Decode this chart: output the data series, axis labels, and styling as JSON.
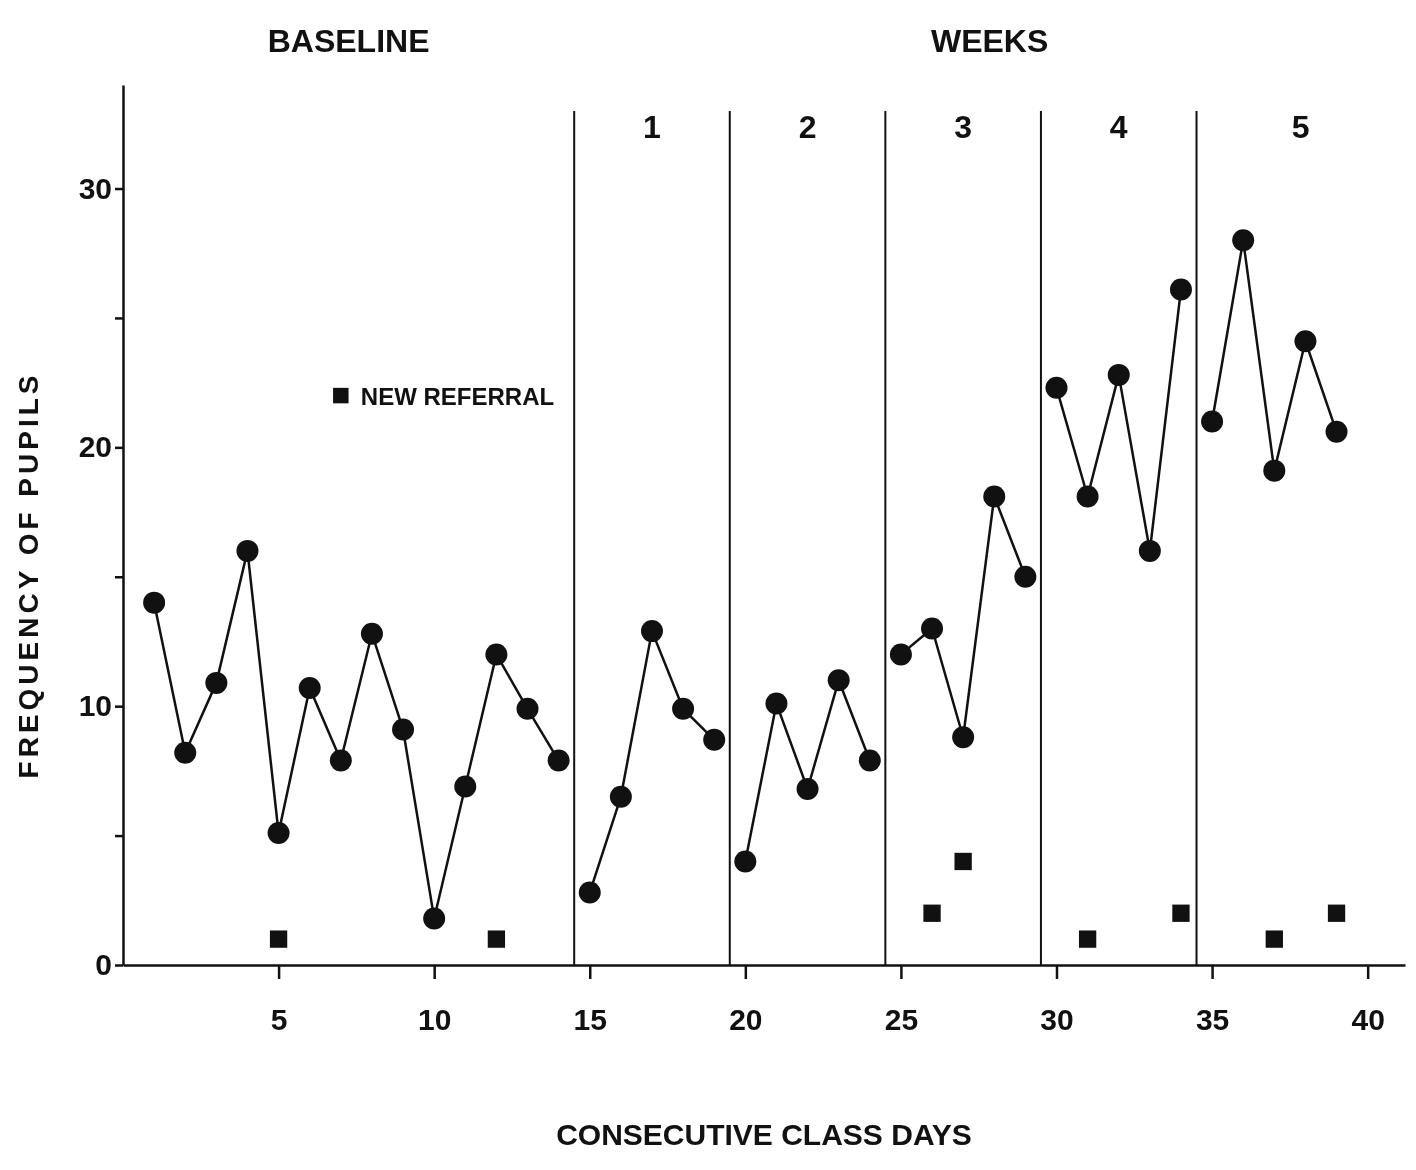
{
  "chart_data": {
    "type": "line",
    "xlabel": "CONSECUTIVE CLASS DAYS",
    "ylabel": "FREQUENCY OF PUPILS",
    "annotations": [
      "BASELINE",
      "WEEKS",
      "1",
      "2",
      "3",
      "4",
      "5"
    ],
    "xlim": [
      0,
      41.2
    ],
    "ylim": [
      0,
      34
    ],
    "xticks": [
      5,
      10,
      15,
      20,
      25,
      30,
      35,
      40
    ],
    "yticks": [
      0,
      {
        "value": 5,
        "label": null
      },
      10,
      {
        "value": 15,
        "label": null
      },
      20,
      {
        "value": 25,
        "label": null
      },
      30
    ],
    "grid": false,
    "legend": "top left",
    "ref_lines": [
      {
        "axis": "x",
        "value": 14.5,
        "color": "#111111"
      },
      {
        "axis": "x",
        "value": 19.5,
        "color": "#111111"
      },
      {
        "axis": "x",
        "value": 24.5,
        "color": "#111111"
      },
      {
        "axis": "x",
        "value": 29.5,
        "color": "#111111"
      },
      {
        "axis": "x",
        "value": 34.5,
        "color": "#111111"
      }
    ],
    "series": [
      {
        "type": "line",
        "marker": "circle",
        "color": "#111111",
        "x": [
          1,
          2,
          3,
          4,
          5,
          6,
          7,
          8,
          9,
          10,
          11,
          12,
          13,
          14
        ],
        "values": [
          14,
          8.2,
          10.9,
          16,
          5.1,
          10.7,
          7.9,
          12.8,
          9.1,
          1.8,
          6.9,
          12,
          9.9,
          7.9
        ]
      },
      {
        "type": "line",
        "marker": "circle",
        "color": "#111111",
        "x": [
          15,
          16,
          17,
          18,
          19
        ],
        "values": [
          2.8,
          6.5,
          12.9,
          9.9,
          8.7
        ]
      },
      {
        "type": "line",
        "marker": "circle",
        "color": "#111111",
        "x": [
          20,
          21,
          22,
          23,
          24
        ],
        "values": [
          4,
          10.1,
          6.8,
          11,
          7.9
        ]
      },
      {
        "type": "line",
        "marker": "circle",
        "color": "#111111",
        "x": [
          25,
          26,
          27,
          28,
          29
        ],
        "values": [
          12,
          13,
          8.8,
          18.1,
          15
        ]
      },
      {
        "type": "line",
        "marker": "circle",
        "color": "#111111",
        "x": [
          30,
          31,
          32,
          33,
          34
        ],
        "values": [
          22.3,
          18.1,
          22.8,
          16,
          26.1
        ]
      },
      {
        "type": "line",
        "marker": "circle",
        "color": "#111111",
        "x": [
          35,
          36,
          37,
          38,
          39
        ],
        "values": [
          21,
          28,
          19.1,
          24.1,
          20.6
        ]
      },
      {
        "type": "scatter",
        "marker": "square",
        "name": "NEW REFERRAL",
        "color": "#111111",
        "x": [
          5,
          12,
          26,
          27,
          31,
          34,
          37,
          39
        ],
        "values": [
          1,
          1,
          2,
          4,
          1,
          2,
          1,
          2
        ]
      }
    ]
  }
}
